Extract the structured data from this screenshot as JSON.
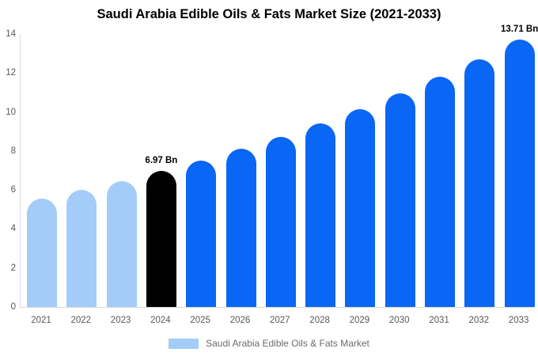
{
  "title": "Saudi Arabia Edible Oils & Fats Market Size (2021-2033)",
  "colors": {
    "background": "#ffffff",
    "axis_line": "#d9d9d9",
    "tick_text": "#58585a",
    "legend_text": "#6b6b6b",
    "annotation_text": "#000000",
    "past_bar": "#a3cdf8",
    "current_bar": "#000000",
    "forecast_bar": "#0a66f5"
  },
  "chart_data": {
    "type": "bar",
    "title": "Saudi Arabia Edible Oils & Fats Market Size (2021-2033)",
    "unit": "Bn",
    "xlabel": "",
    "ylabel": "",
    "ylim": [
      0,
      14
    ],
    "yticks": [
      "0",
      "2",
      "4",
      "6",
      "8",
      "10",
      "12",
      "14"
    ],
    "grid": false,
    "legend_position": "bottom",
    "categories": [
      "2021",
      "2022",
      "2023",
      "2024",
      "2025",
      "2026",
      "2027",
      "2028",
      "2029",
      "2030",
      "2031",
      "2032",
      "2033"
    ],
    "values": [
      5.56,
      6.0,
      6.47,
      6.97,
      7.51,
      8.1,
      8.73,
      9.42,
      10.15,
      10.94,
      11.8,
      12.72,
      13.71
    ],
    "segment_colors": {
      "past": "#a3cdf8",
      "current": "#000000",
      "forecast": "#0a66f5"
    },
    "points": [
      {
        "category": "2021",
        "value": 5.56,
        "segment": "past"
      },
      {
        "category": "2022",
        "value": 6.0,
        "segment": "past"
      },
      {
        "category": "2023",
        "value": 6.47,
        "segment": "past"
      },
      {
        "category": "2024",
        "value": 6.97,
        "segment": "current",
        "annotation": "6.97 Bn"
      },
      {
        "category": "2025",
        "value": 7.51,
        "segment": "forecast"
      },
      {
        "category": "2026",
        "value": 8.1,
        "segment": "forecast"
      },
      {
        "category": "2027",
        "value": 8.73,
        "segment": "forecast"
      },
      {
        "category": "2028",
        "value": 9.42,
        "segment": "forecast"
      },
      {
        "category": "2029",
        "value": 10.15,
        "segment": "forecast"
      },
      {
        "category": "2030",
        "value": 10.94,
        "segment": "forecast"
      },
      {
        "category": "2031",
        "value": 11.8,
        "segment": "forecast"
      },
      {
        "category": "2032",
        "value": 12.72,
        "segment": "forecast"
      },
      {
        "category": "2033",
        "value": 13.71,
        "segment": "forecast",
        "annotation": "13.71 Bn"
      }
    ],
    "legend": [
      {
        "label": "Saudi Arabia Edible Oils & Fats Market",
        "color": "#a3cdf8"
      }
    ]
  }
}
